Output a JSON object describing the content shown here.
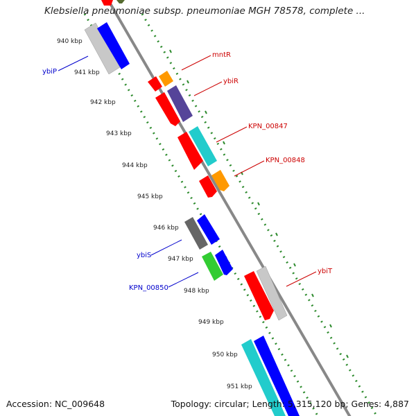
{
  "title": "Klebsiella pneumoniae subsp. pneumoniae MGH 78578, complete ...",
  "accession": "Accession: NC_009648",
  "summary": "Topology: circular; Length: 5,315,120 bp; Genes: 4,887",
  "ruler_labels": [
    "940 kbp",
    "941 kbp",
    "942 kbp",
    "943 kbp",
    "944 kbp",
    "945 kbp",
    "946 kbp",
    "947 kbp",
    "948 kbp",
    "949 kbp",
    "950 kbp",
    "951 kbp"
  ],
  "gene_labels": {
    "mntR": "mntR",
    "ybiR": "ybiR",
    "KPN_00847": "KPN_00847",
    "KPN_00848": "KPN_00848",
    "ybiT": "ybiT",
    "ybiP": "ybiP",
    "ybiS": "ybiS",
    "KPN_00850": "KPN_00850"
  },
  "colors": {
    "forward_label": "#cc0000",
    "reverse_label": "#0000cc",
    "ruler_dots": "#2e8b2e",
    "backbone": "#888888",
    "red": "#ff0000",
    "blue": "#0000ff",
    "cyan": "#22cccc",
    "orange": "#ff9900",
    "purple": "#554499",
    "gray": "#c8c8c8",
    "darkgray": "#666666",
    "green": "#33cc33"
  }
}
